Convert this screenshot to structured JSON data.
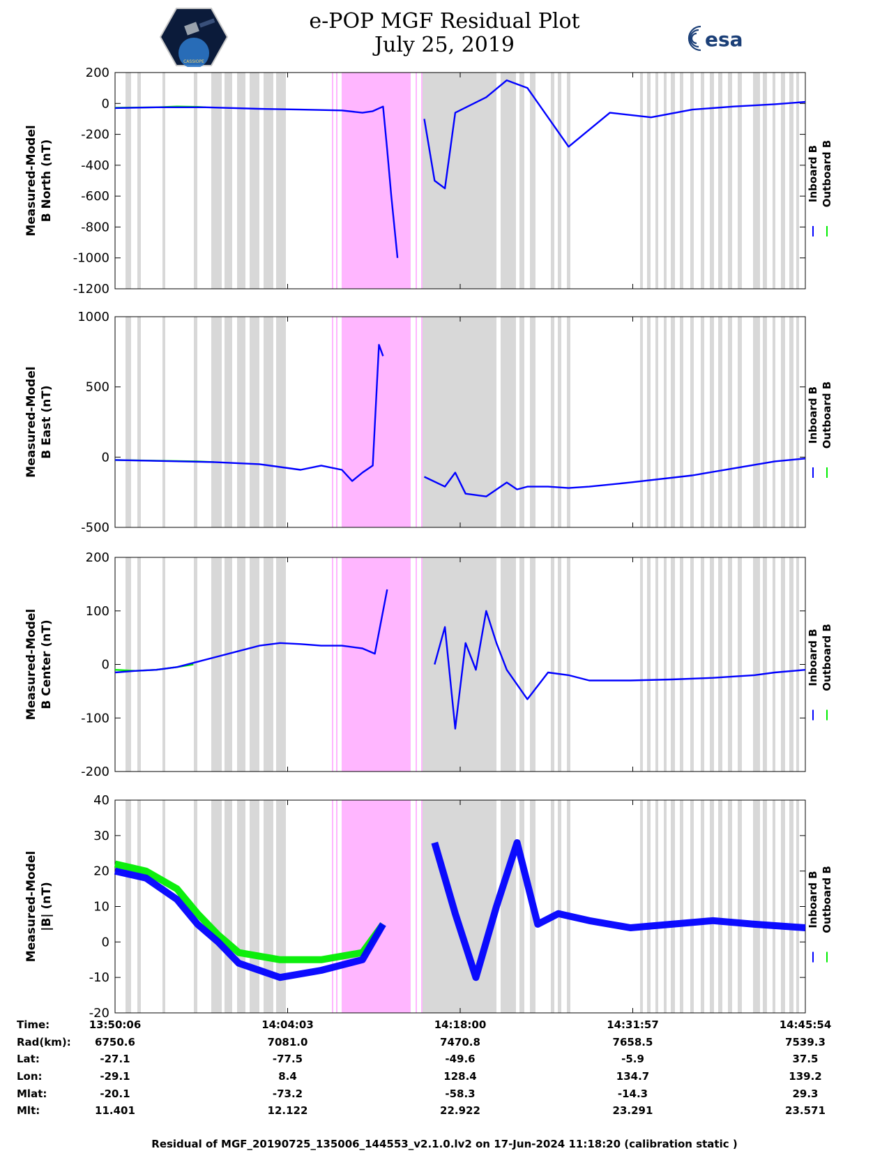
{
  "header": {
    "title_line1": "e-POP MGF Residual Plot",
    "title_line2": "July 25, 2019",
    "mission_logo_text": "CASSIOPE",
    "esa_logo_text": "esa"
  },
  "colors": {
    "inboard": "#0000ff",
    "outboard": "#00ee00",
    "gap_shading": "#d8d8d8",
    "special_shading": "#ffb6ff"
  },
  "legend": {
    "inboard": "Inboard B",
    "outboard": "Outboard B"
  },
  "chart_data": [
    {
      "type": "line",
      "id": "north",
      "ylabel_line1": "Measured-Model",
      "ylabel_line2": "B North (nT)",
      "ylim": [
        -1200,
        200
      ],
      "yticks": [
        200,
        0,
        -200,
        -400,
        -600,
        -800,
        -1000,
        -1200
      ],
      "xlim": [
        0,
        3348
      ],
      "series": [
        {
          "name": "Outboard B",
          "x": [
            0,
            200,
            300,
            400,
            440
          ],
          "y": [
            -28,
            -25,
            -20,
            -22,
            -25
          ]
        },
        {
          "name": "Inboard B",
          "x": [
            0,
            200,
            440,
            700,
            900,
            1100,
            1200,
            1250,
            1300,
            1320,
            1340,
            1370,
            1400,
            1420,
            1450,
            1500,
            1550,
            1600,
            1650,
            1800,
            1900,
            2000,
            2200,
            2400,
            2600,
            2800,
            3000,
            3200,
            3348
          ],
          "y": [
            -30,
            -25,
            -25,
            -35,
            -40,
            -45,
            -60,
            -50,
            -20,
            -300,
            -600,
            -1000,
            null,
            null,
            null,
            -100,
            -500,
            -550,
            -60,
            40,
            150,
            100,
            -280,
            -60,
            -90,
            -40,
            -20,
            -5,
            10
          ]
        }
      ]
    },
    {
      "type": "line",
      "id": "east",
      "ylabel_line1": "Measured-Model",
      "ylabel_line2": "B East (nT)",
      "ylim": [
        -500,
        1000
      ],
      "yticks": [
        1000,
        500,
        0,
        -500
      ],
      "xlim": [
        0,
        3348
      ],
      "series": [
        {
          "name": "Outboard B",
          "x": [
            0,
            200,
            400,
            480
          ],
          "y": [
            -20,
            -25,
            -30,
            -35
          ]
        },
        {
          "name": "Inboard B",
          "x": [
            0,
            480,
            700,
            900,
            1000,
            1100,
            1150,
            1200,
            1250,
            1280,
            1300,
            1320,
            1340,
            1370,
            1450,
            1500,
            1600,
            1650,
            1700,
            1800,
            1900,
            1950,
            2000,
            2100,
            2200,
            2300,
            2500,
            2800,
            3000,
            3200,
            3348
          ],
          "y": [
            -20,
            -35,
            -50,
            -90,
            -60,
            -90,
            -170,
            -110,
            -60,
            800,
            720,
            null,
            null,
            null,
            null,
            -140,
            -210,
            -110,
            -260,
            -280,
            -180,
            -230,
            -210,
            -210,
            -220,
            -210,
            -180,
            -130,
            -80,
            -30,
            -10
          ]
        }
      ]
    },
    {
      "type": "line",
      "id": "center",
      "ylabel_line1": "Measured-Model",
      "ylabel_line2": "B Center (nT)",
      "ylim": [
        -200,
        200
      ],
      "yticks": [
        200,
        100,
        0,
        -100,
        -200
      ],
      "xlim": [
        0,
        3348
      ],
      "series": [
        {
          "name": "Outboard B",
          "x": [
            0,
            100,
            200,
            300,
            380
          ],
          "y": [
            -10,
            -12,
            -10,
            -5,
            0
          ]
        },
        {
          "name": "Inboard B",
          "x": [
            0,
            100,
            200,
            300,
            400,
            500,
            600,
            700,
            800,
            900,
            1000,
            1100,
            1200,
            1260,
            1320,
            1500,
            1550,
            1600,
            1650,
            1700,
            1750,
            1800,
            1850,
            1900,
            2000,
            2100,
            2200,
            2300,
            2500,
            2700,
            2900,
            3100,
            3200,
            3348
          ],
          "y": [
            -15,
            -12,
            -10,
            -5,
            5,
            15,
            25,
            35,
            40,
            38,
            35,
            35,
            30,
            20,
            140,
            null,
            0,
            70,
            -120,
            40,
            -10,
            100,
            40,
            -10,
            -65,
            -15,
            -20,
            -30,
            -30,
            -28,
            -25,
            -20,
            -15,
            -10
          ]
        }
      ]
    },
    {
      "type": "line",
      "id": "total",
      "ylabel_line1": "Measured-Model",
      "ylabel_line2": "|B| (nT)",
      "ylim": [
        -20,
        40
      ],
      "yticks": [
        40,
        30,
        20,
        10,
        0,
        -10,
        -20
      ],
      "xlim": [
        0,
        3348
      ],
      "series": [
        {
          "name": "Outboard B",
          "x": [
            0,
            150,
            300,
            400,
            500,
            600,
            800,
            1000,
            1200,
            1300
          ],
          "y": [
            22,
            20,
            15,
            8,
            2,
            -3,
            -5,
            -5,
            -3,
            5
          ]
        },
        {
          "name": "Inboard B",
          "x": [
            0,
            150,
            300,
            400,
            500,
            600,
            800,
            1000,
            1200,
            1300,
            1500,
            1550,
            1650,
            1750,
            1850,
            1950,
            2050,
            2150,
            2300,
            2500,
            2700,
            2900,
            3100,
            3348
          ],
          "y": [
            20,
            18,
            12,
            5,
            0,
            -6,
            -10,
            -8,
            -5,
            5,
            null,
            28,
            8,
            -10,
            10,
            28,
            5,
            8,
            6,
            4,
            5,
            6,
            5,
            4
          ]
        }
      ]
    }
  ],
  "x_table": {
    "labels": [
      "Time:",
      "Rad(km):",
      "Lat:",
      "Lon:",
      "Mlat:",
      "Mlt:"
    ],
    "columns": [
      {
        "Time": "13:50:06",
        "Rad": "6750.6",
        "Lat": "-27.1",
        "Lon": "-29.1",
        "Mlat": "-20.1",
        "Mlt": "11.401"
      },
      {
        "Time": "14:04:03",
        "Rad": "7081.0",
        "Lat": "-77.5",
        "Lon": "8.4",
        "Mlat": "-73.2",
        "Mlt": "12.122"
      },
      {
        "Time": "14:18:00",
        "Rad": "7470.8",
        "Lat": "-49.6",
        "Lon": "128.4",
        "Mlat": "-58.3",
        "Mlt": "22.922"
      },
      {
        "Time": "14:31:57",
        "Rad": "7658.5",
        "Lat": "-5.9",
        "Lon": "134.7",
        "Mlat": "-14.3",
        "Mlt": "23.291"
      },
      {
        "Time": "14:45:54",
        "Rad": "7539.3",
        "Lat": "37.5",
        "Lon": "139.2",
        "Mlat": "29.3",
        "Mlt": "23.571"
      }
    ]
  },
  "footer": "Residual of MGF_20190725_135006_144553_v2.1.0.lv2 on 17-Jun-2024 11:18:20 (calibration static )"
}
